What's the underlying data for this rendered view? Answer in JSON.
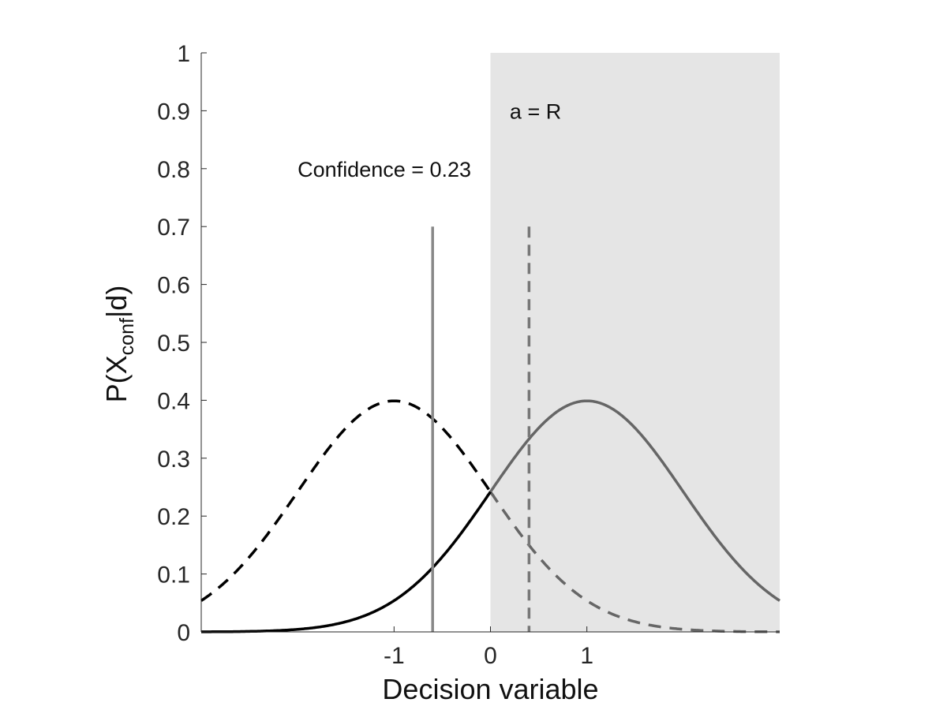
{
  "chart_data": {
    "type": "line",
    "title": "",
    "xlabel": "Decision variable",
    "ylabel": {
      "main": "P(X",
      "sub": "conf",
      "tail": "|d)"
    },
    "xlim": [
      -3,
      3
    ],
    "ylim": [
      0,
      1
    ],
    "x_ticks": [
      -1,
      0,
      1
    ],
    "x_tick_labels": [
      "-1",
      "0",
      "1"
    ],
    "y_ticks": [
      0,
      0.1,
      0.2,
      0.3,
      0.4,
      0.5,
      0.6,
      0.7,
      0.8,
      0.9,
      1
    ],
    "y_tick_labels": [
      "0",
      "0.1",
      "0.2",
      "0.3",
      "0.4",
      "0.5",
      "0.6",
      "0.7",
      "0.8",
      "0.9",
      "1"
    ],
    "grid": false,
    "shaded_region": {
      "x": [
        0,
        3
      ],
      "color": "#e5e5e5"
    },
    "series": [
      {
        "style": "dashed",
        "mean": -1,
        "sd": 1,
        "color_left": "#000000",
        "color_right": "#666666",
        "x": [
          -3,
          -2.5,
          -2,
          -1.5,
          -1,
          -0.5,
          0,
          0.5,
          1,
          1.5,
          2,
          2.5,
          3
        ],
        "values": [
          0.054,
          0.13,
          0.242,
          0.352,
          0.399,
          0.352,
          0.242,
          0.13,
          0.054,
          0.018,
          0.004,
          0.001,
          0.0
        ]
      },
      {
        "style": "solid",
        "mean": 1,
        "sd": 1,
        "color_left": "#000000",
        "color_right": "#666666",
        "x": [
          -3,
          -2.5,
          -2,
          -1.5,
          -1,
          -0.5,
          0,
          0.5,
          1,
          1.5,
          2,
          2.5,
          3
        ],
        "values": [
          0.0,
          0.001,
          0.004,
          0.018,
          0.054,
          0.13,
          0.242,
          0.352,
          0.399,
          0.352,
          0.242,
          0.13,
          0.054
        ]
      }
    ],
    "vertical_lines": [
      {
        "x": -0.6,
        "y_max": 0.7,
        "style": "solid",
        "color": "#888888"
      },
      {
        "x": 0.4,
        "y_max": 0.7,
        "style": "dashed",
        "color": "#777777"
      }
    ],
    "annotations": [
      {
        "text": "Confidence = 0.23",
        "x": -2,
        "y": 0.8
      },
      {
        "text": "a = R",
        "x": 0.2,
        "y": 0.9
      }
    ]
  }
}
